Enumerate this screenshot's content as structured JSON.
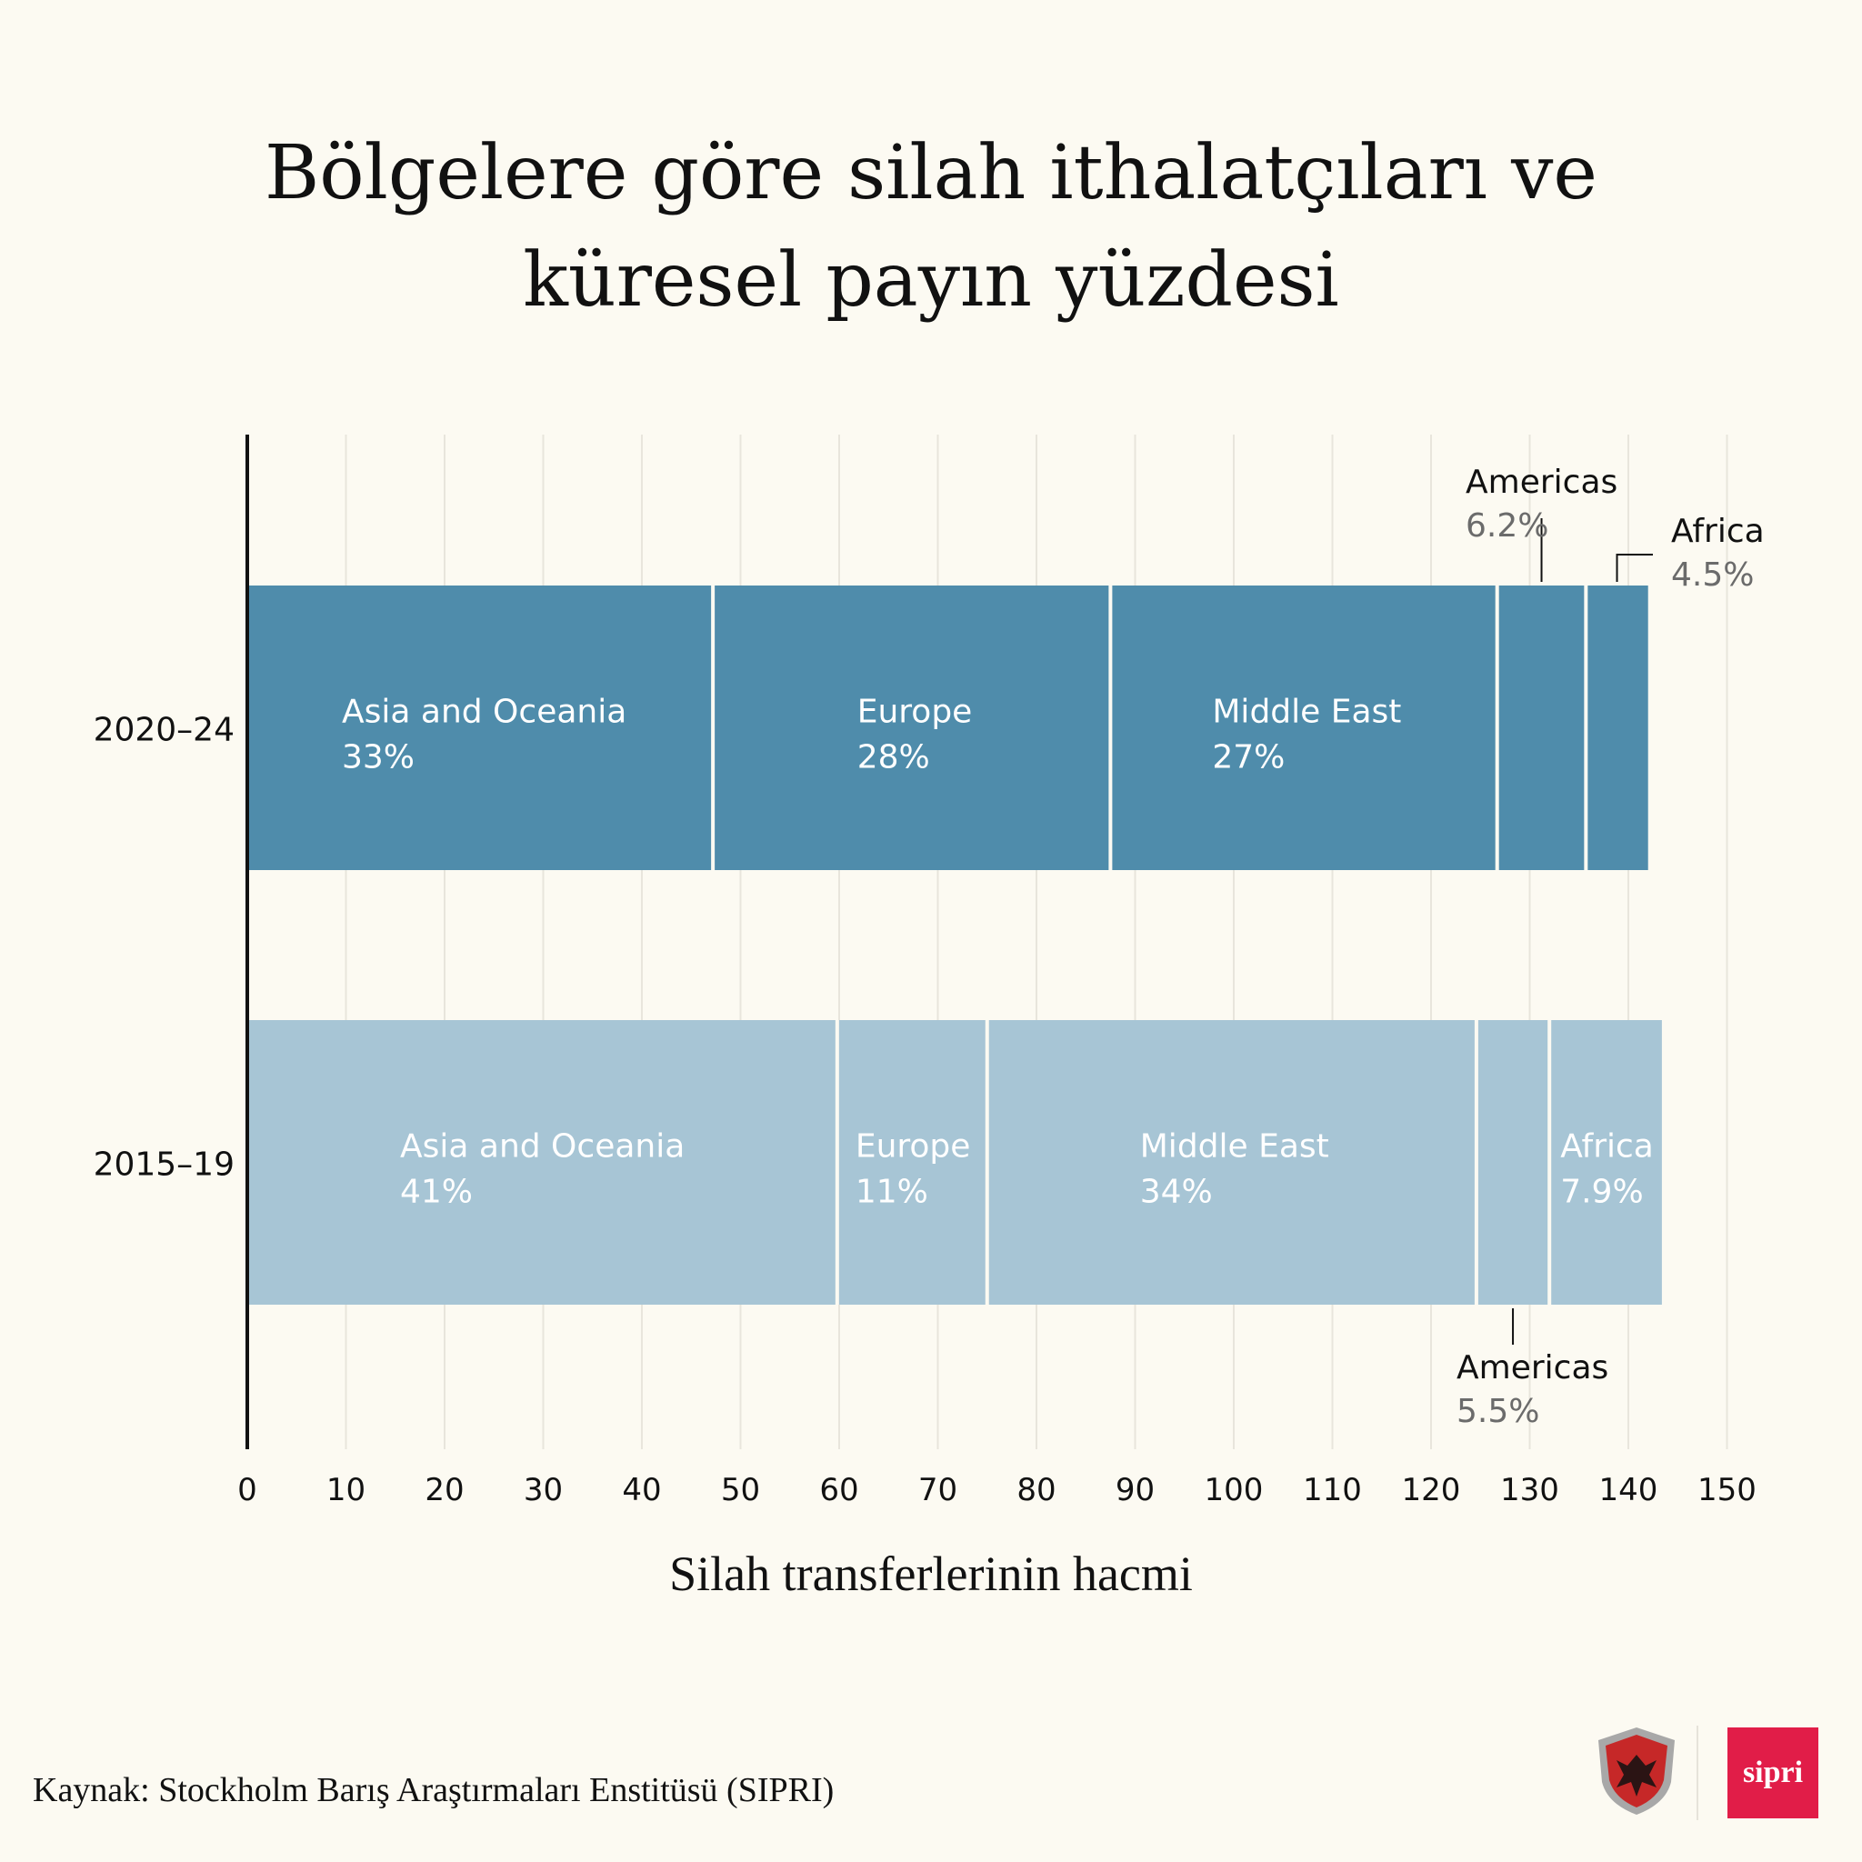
{
  "title_lines": [
    "Bölgelere göre silah ithalatçıları ve",
    "küresel payın yüzdesi"
  ],
  "source": "Kaynak: Stockholm Barış Araştırmaları Enstitüsü (SIPRI)",
  "logos": {
    "sipri": "sipri",
    "defence_turk": "DEFENCE TURK"
  },
  "colors": {
    "recent": "#4f8cab",
    "earlier": "#a7c5d5",
    "background": "#fcfaf2",
    "grid": "#e8e5dc",
    "sipri": "#e11d48"
  },
  "chart_data": {
    "type": "bar",
    "orientation": "horizontal",
    "stacked": true,
    "xlabel": "Silah transferlerinin hacmi",
    "xlim": [
      0,
      150
    ],
    "xticks": [
      0,
      10,
      20,
      30,
      40,
      50,
      60,
      70,
      80,
      90,
      100,
      110,
      120,
      130,
      140,
      150
    ],
    "grid": true,
    "rows": [
      {
        "period": "2020–24",
        "segments": [
          {
            "region": "Asia and Oceania",
            "share": "33%",
            "value": 47.2
          },
          {
            "region": "Europe",
            "share": "28%",
            "value": 40.3
          },
          {
            "region": "Middle East",
            "share": "27%",
            "value": 39.2
          },
          {
            "region": "Americas",
            "share": "6.2%",
            "value": 9.0
          },
          {
            "region": "Africa",
            "share": "4.5%",
            "value": 6.3
          }
        ]
      },
      {
        "period": "2015–19",
        "segments": [
          {
            "region": "Asia and Oceania",
            "share": "41%",
            "value": 59.8
          },
          {
            "region": "Europe",
            "share": "11%",
            "value": 15.2
          },
          {
            "region": "Middle East",
            "share": "34%",
            "value": 49.6
          },
          {
            "region": "Americas",
            "share": "5.5%",
            "value": 7.4
          },
          {
            "region": "Africa",
            "share": "7.9%",
            "value": 11.4
          }
        ]
      }
    ]
  }
}
